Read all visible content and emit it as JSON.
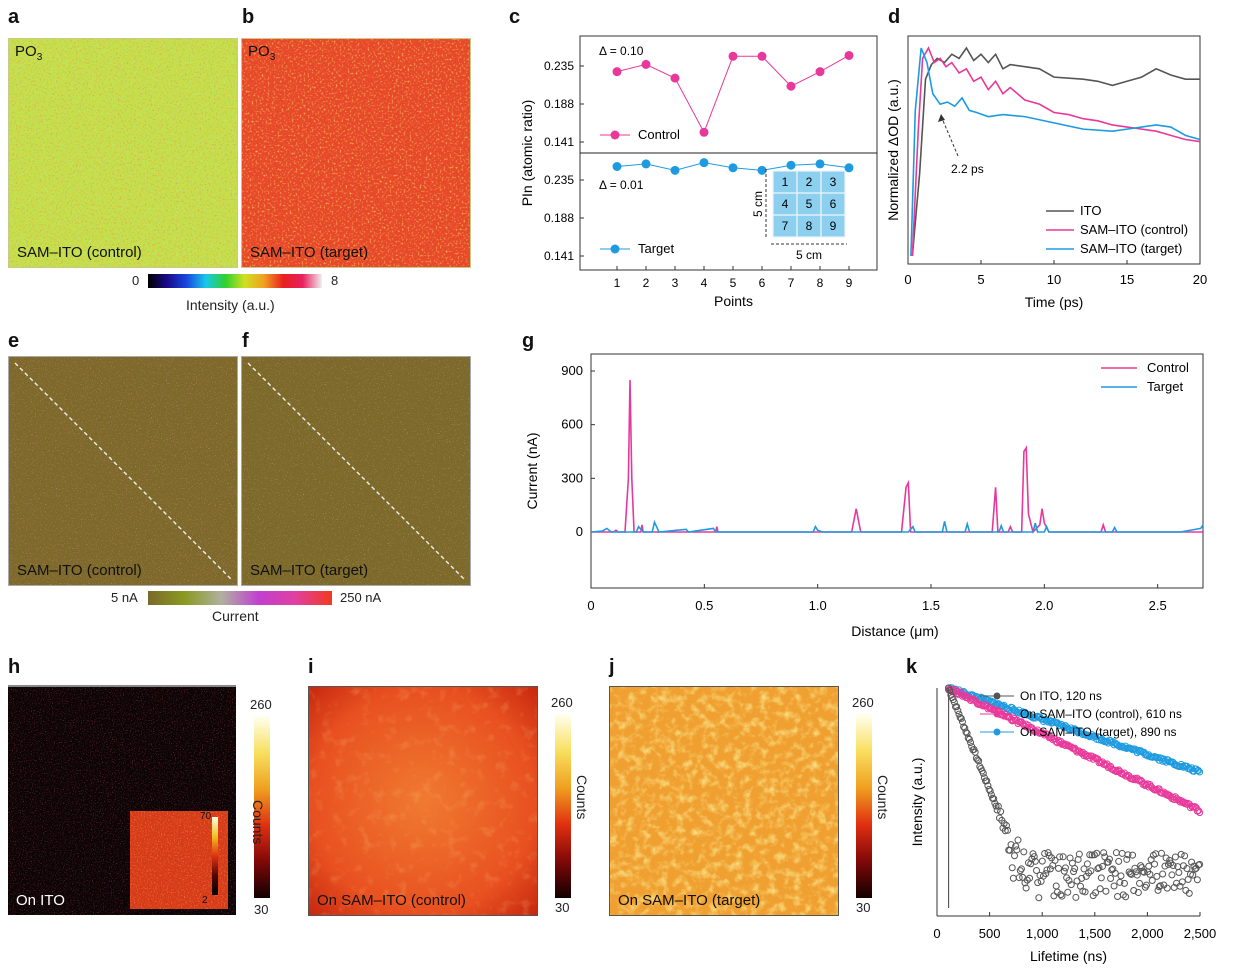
{
  "panel_labels": {
    "a": "a",
    "b": "b",
    "c": "c",
    "d": "d",
    "e": "e",
    "f": "f",
    "g": "g",
    "h": "h",
    "i": "i",
    "j": "j",
    "k": "k"
  },
  "maps": {
    "a": {
      "species": "PO3",
      "species_base": "PO",
      "species_sub": "3",
      "caption": "SAM–ITO (control)"
    },
    "b": {
      "species": "PO3",
      "species_base": "PO",
      "species_sub": "3",
      "caption": "SAM–ITO (target)"
    },
    "e": {
      "caption": "SAM–ITO (control)"
    },
    "f": {
      "caption": "SAM–ITO (target)"
    },
    "h": {
      "caption": "On ITO",
      "inset_max": "70",
      "inset_min": "2"
    },
    "i": {
      "caption": "On SAM–ITO (control)"
    },
    "j": {
      "caption": "On SAM–ITO (target)"
    }
  },
  "colorbars": {
    "intensity": {
      "min": "0",
      "max": "8",
      "label": "Intensity (a.u.)"
    },
    "current": {
      "min": "5 nA",
      "max": "250 nA",
      "label": "Current"
    },
    "counts": {
      "max": "260",
      "min": "30",
      "label": "Counts"
    }
  },
  "colors": {
    "control": "#e8399a",
    "target": "#1e9be0",
    "ito": "#555555"
  },
  "chart_data": [
    {
      "id": "c",
      "type": "line",
      "xlabel": "Points",
      "ylabel": "PIn (atomic ratio)",
      "x": [
        1,
        2,
        3,
        4,
        5,
        6,
        7,
        8,
        9
      ],
      "yticks": [
        "0.235",
        "0.188",
        "0.141"
      ],
      "series": [
        {
          "name": "Control",
          "delta": "Δ = 0.10",
          "values": [
            0.228,
            0.237,
            0.22,
            0.153,
            0.247,
            0.247,
            0.21,
            0.228,
            0.248
          ]
        },
        {
          "name": "Target",
          "delta": "Δ = 0.01",
          "values": [
            0.261,
            0.263,
            0.258,
            0.264,
            0.26,
            0.258,
            0.262,
            0.263,
            0.26
          ]
        }
      ],
      "inset": {
        "grid": [
          "1",
          "2",
          "3",
          "4",
          "5",
          "6",
          "7",
          "8",
          "9"
        ],
        "dim_v": "5 cm",
        "dim_h": "5 cm"
      }
    },
    {
      "id": "d",
      "type": "line",
      "xlabel": "Time (ps)",
      "ylabel": "Normalized ΔOD (a.u.)",
      "xlim": [
        0,
        20
      ],
      "xticks": [
        "0",
        "5",
        "10",
        "15",
        "20"
      ],
      "annotation": "2.2 ps",
      "series": [
        {
          "name": "ITO",
          "points": [
            [
              0.3,
              0
            ],
            [
              0.8,
              0.4
            ],
            [
              1.2,
              0.85
            ],
            [
              1.6,
              0.92
            ],
            [
              2,
              0.95
            ],
            [
              2.5,
              0.93
            ],
            [
              3,
              0.97
            ],
            [
              3.5,
              0.95
            ],
            [
              4,
              1.0
            ],
            [
              4.5,
              0.94
            ],
            [
              5,
              0.97
            ],
            [
              5.5,
              0.93
            ],
            [
              6,
              0.97
            ],
            [
              6.5,
              0.9
            ],
            [
              7,
              0.92
            ],
            [
              8,
              0.91
            ],
            [
              9,
              0.9
            ],
            [
              10,
              0.86
            ],
            [
              12,
              0.85
            ],
            [
              13,
              0.84
            ],
            [
              14,
              0.82
            ],
            [
              15,
              0.84
            ],
            [
              16,
              0.86
            ],
            [
              17,
              0.9
            ],
            [
              18,
              0.87
            ],
            [
              19,
              0.85
            ],
            [
              20,
              0.85
            ]
          ]
        },
        {
          "name": "SAM–ITO (control)",
          "points": [
            [
              0.3,
              0
            ],
            [
              0.7,
              0.6
            ],
            [
              1,
              0.95
            ],
            [
              1.4,
              1.0
            ],
            [
              1.8,
              0.93
            ],
            [
              2.2,
              0.95
            ],
            [
              2.6,
              0.91
            ],
            [
              3,
              0.93
            ],
            [
              3.5,
              0.88
            ],
            [
              4,
              0.9
            ],
            [
              4.5,
              0.84
            ],
            [
              5,
              0.86
            ],
            [
              5.5,
              0.8
            ],
            [
              6,
              0.84
            ],
            [
              6.5,
              0.78
            ],
            [
              7,
              0.81
            ],
            [
              8,
              0.75
            ],
            [
              9,
              0.73
            ],
            [
              10,
              0.69
            ],
            [
              11,
              0.68
            ],
            [
              12,
              0.66
            ],
            [
              13,
              0.65
            ],
            [
              14,
              0.63
            ],
            [
              15,
              0.62
            ],
            [
              16,
              0.61
            ],
            [
              17,
              0.6
            ],
            [
              18,
              0.58
            ],
            [
              19,
              0.56
            ],
            [
              20,
              0.55
            ]
          ]
        },
        {
          "name": "SAM–ITO (target)",
          "points": [
            [
              0.2,
              0
            ],
            [
              0.5,
              0.7
            ],
            [
              0.9,
              1.0
            ],
            [
              1.3,
              0.93
            ],
            [
              1.7,
              0.78
            ],
            [
              2.2,
              0.73
            ],
            [
              2.7,
              0.74
            ],
            [
              3.2,
              0.72
            ],
            [
              3.7,
              0.76
            ],
            [
              4.2,
              0.7
            ],
            [
              4.7,
              0.69
            ],
            [
              5.5,
              0.67
            ],
            [
              6.5,
              0.68
            ],
            [
              8,
              0.67
            ],
            [
              10,
              0.64
            ],
            [
              12,
              0.61
            ],
            [
              14,
              0.6
            ],
            [
              15,
              0.61
            ],
            [
              16,
              0.62
            ],
            [
              17,
              0.63
            ],
            [
              18,
              0.62
            ],
            [
              19,
              0.58
            ],
            [
              20,
              0.56
            ]
          ]
        }
      ]
    },
    {
      "id": "g",
      "type": "line",
      "xlabel": "Distance (μm)",
      "ylabel": "Current (nA)",
      "xlim": [
        0,
        2.7
      ],
      "ylim": [
        -280,
        980
      ],
      "xticks": [
        "0",
        "0.5",
        "1.0",
        "1.5",
        "2.0",
        "2.5"
      ],
      "yticks": [
        "900",
        "600",
        "300",
        "0"
      ],
      "series": [
        {
          "name": "Control",
          "points": [
            [
              0,
              0
            ],
            [
              0.1,
              0
            ],
            [
              0.11,
              10
            ],
            [
              0.12,
              0
            ],
            [
              0.15,
              0
            ],
            [
              0.165,
              300
            ],
            [
              0.172,
              850
            ],
            [
              0.18,
              300
            ],
            [
              0.19,
              0
            ],
            [
              0.22,
              0
            ],
            [
              0.225,
              40
            ],
            [
              0.23,
              0
            ],
            [
              0.55,
              0
            ],
            [
              0.555,
              30
            ],
            [
              0.56,
              0
            ],
            [
              0.8,
              0
            ],
            [
              1.15,
              0
            ],
            [
              1.17,
              130
            ],
            [
              1.19,
              0
            ],
            [
              1.37,
              0
            ],
            [
              1.39,
              250
            ],
            [
              1.4,
              275
            ],
            [
              1.41,
              0
            ],
            [
              1.77,
              0
            ],
            [
              1.785,
              250
            ],
            [
              1.795,
              0
            ],
            [
              1.84,
              0
            ],
            [
              1.85,
              30
            ],
            [
              1.86,
              0
            ],
            [
              1.9,
              0
            ],
            [
              1.91,
              450
            ],
            [
              1.92,
              470
            ],
            [
              1.93,
              100
            ],
            [
              1.95,
              0
            ],
            [
              1.98,
              40
            ],
            [
              1.99,
              130
            ],
            [
              2.0,
              50
            ],
            [
              2.02,
              0
            ],
            [
              2.25,
              0
            ],
            [
              2.26,
              40
            ],
            [
              2.27,
              0
            ],
            [
              2.5,
              0
            ],
            [
              2.7,
              0
            ]
          ]
        },
        {
          "name": "Target",
          "points": [
            [
              0,
              0
            ],
            [
              0.05,
              5
            ],
            [
              0.07,
              20
            ],
            [
              0.09,
              0
            ],
            [
              0.2,
              0
            ],
            [
              0.21,
              30
            ],
            [
              0.23,
              0
            ],
            [
              0.27,
              0
            ],
            [
              0.28,
              55
            ],
            [
              0.3,
              0
            ],
            [
              0.42,
              15
            ],
            [
              0.43,
              0
            ],
            [
              0.54,
              20
            ],
            [
              0.55,
              0
            ],
            [
              0.98,
              0
            ],
            [
              0.99,
              30
            ],
            [
              1.0,
              10
            ],
            [
              1.02,
              0
            ],
            [
              1.4,
              0
            ],
            [
              1.42,
              30
            ],
            [
              1.43,
              0
            ],
            [
              1.55,
              0
            ],
            [
              1.56,
              60
            ],
            [
              1.57,
              0
            ],
            [
              1.65,
              0
            ],
            [
              1.66,
              45
            ],
            [
              1.67,
              0
            ],
            [
              1.8,
              0
            ],
            [
              1.81,
              35
            ],
            [
              1.82,
              0
            ],
            [
              1.95,
              0
            ],
            [
              1.96,
              50
            ],
            [
              1.97,
              0
            ],
            [
              2.0,
              0
            ],
            [
              2.01,
              30
            ],
            [
              2.02,
              0
            ],
            [
              2.3,
              0
            ],
            [
              2.31,
              25
            ],
            [
              2.32,
              0
            ],
            [
              2.6,
              0
            ],
            [
              2.69,
              20
            ],
            [
              2.7,
              40
            ]
          ]
        }
      ]
    },
    {
      "id": "k",
      "type": "scatter",
      "xlabel": "Lifetime (ns)",
      "ylabel": "Intensity (a.u.)",
      "xlim": [
        0,
        2500
      ],
      "xticks": [
        "0",
        "500",
        "1,000",
        "1,500",
        "2,000",
        "2,500"
      ],
      "series": [
        {
          "name": "On ITO, 120 ns",
          "tau": 120
        },
        {
          "name": "On SAM–ITO (control), 610 ns",
          "tau": 610
        },
        {
          "name": "On SAM–ITO (target), 890 ns",
          "tau": 890
        }
      ]
    }
  ]
}
